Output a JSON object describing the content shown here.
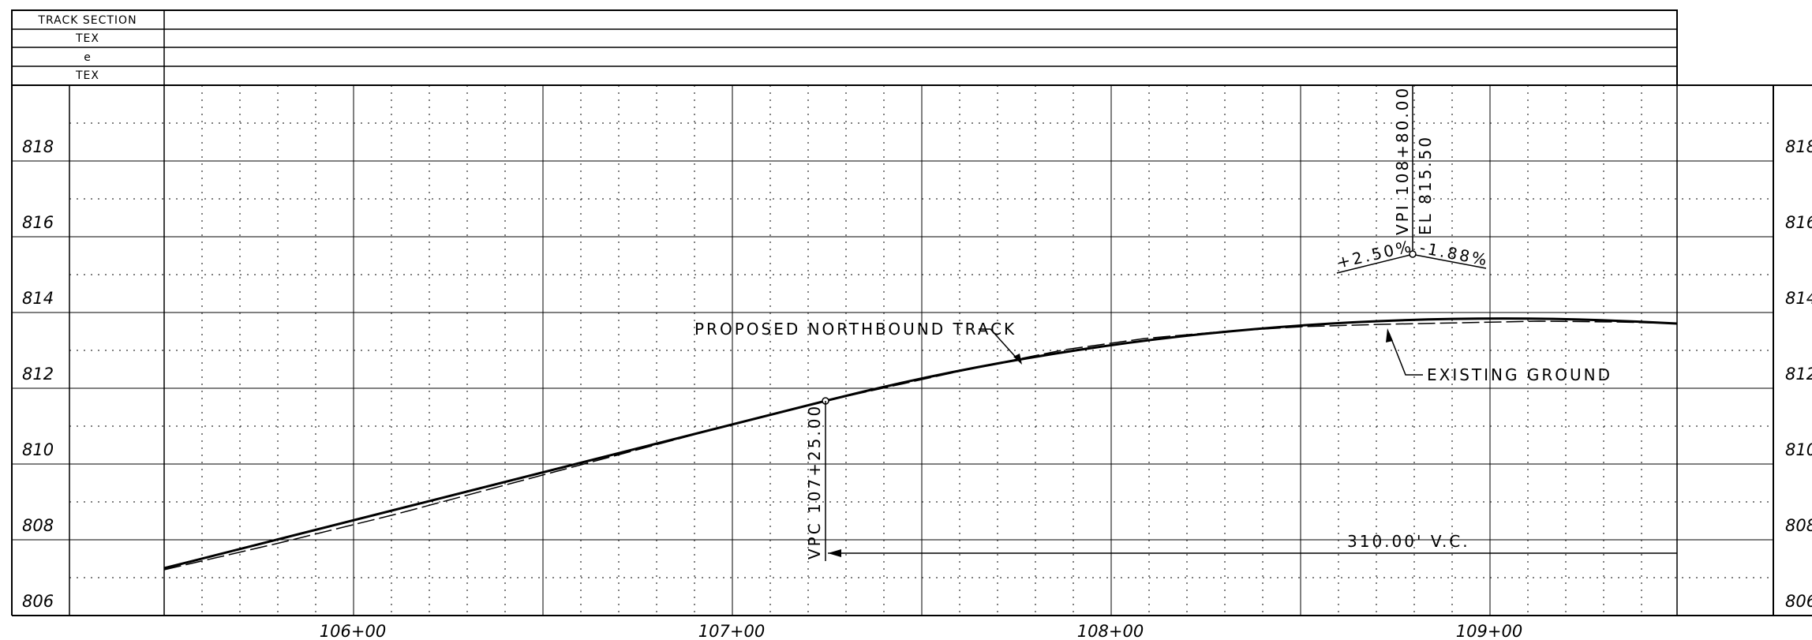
{
  "header_rows": [
    "TRACK SECTION",
    "TEX",
    "e",
    "TEX"
  ],
  "elevations": [
    "818",
    "816",
    "814",
    "812",
    "810",
    "808",
    "806"
  ],
  "stations": [
    "106+00",
    "107+00",
    "108+00",
    "109+00"
  ],
  "annotations": {
    "proposed_track": "PROPOSED NORTHBOUND TRACK",
    "existing_ground": "EXISTING GROUND",
    "vpi_station": "VPI 108+80.00",
    "vpi_elevation": "EL 815.50",
    "grade_in": "+2.50%",
    "grade_out": "-1.88%",
    "vpc_station": "VPC 107+25.00",
    "vertical_curve": "310.00' V.C."
  },
  "colors": {
    "line": "#000000",
    "grid": "#000000",
    "background": "#ffffff"
  }
}
